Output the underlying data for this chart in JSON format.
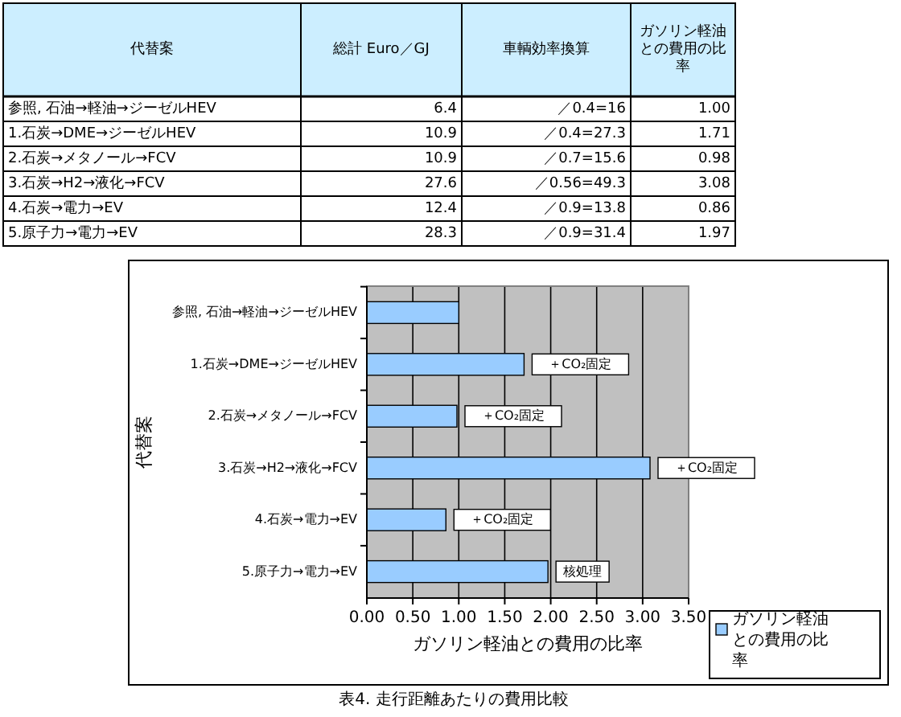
{
  "chart_data": [
    {
      "type": "other",
      "ylabel": "代替案",
      "categories": [
        "参照, 石油→軽油→ジーゼルHEV",
        "1.石炭→DME→ジーゼルHEV",
        "2.石炭→メタノール→FCV",
        "3.石炭→H2→液化→FCV",
        "4.石炭→電力→EV",
        "5.原子力→電力→EV"
      ],
      "series": [
        {
          "name": "総計 Euro／GJ",
          "values": [
            6.4,
            10.9,
            10.9,
            27.6,
            12.4,
            28.3
          ],
          "value_labels": [
            "6.4",
            "10.9",
            "10.9",
            "27.6",
            "12.4",
            "28.3"
          ]
        },
        {
          "name": "車輌効率換算",
          "values": [
            16,
            27.3,
            15.6,
            49.3,
            13.8,
            31.4
          ],
          "value_labels": [
            "／0.4=16",
            "／0.4=27.3",
            "／0.7=15.6",
            "／0.56=49.3",
            "／0.9=13.8",
            "／0.9=31.4"
          ]
        },
        {
          "name": "ガソリン軽油との費用の比率",
          "values": [
            1.0,
            1.71,
            0.98,
            3.08,
            0.86,
            1.97
          ],
          "value_labels": [
            "1.00",
            "1.71",
            "0.98",
            "3.08",
            "0.86",
            "1.97"
          ]
        }
      ]
    },
    {
      "type": "bar",
      "orientation": "horizontal",
      "xlabel": "ガソリン軽油との費用の比率",
      "ylabel": "代替案",
      "categories": [
        "参照, 石油→軽油→ジーゼルHEV",
        "1.石炭→DME→ジーゼルHEV",
        "2.石炭→メタノール→FCV",
        "3.石炭→H2→液化→FCV",
        "4.石炭→電力→EV",
        "5.原子力→電力→EV"
      ],
      "series": [
        {
          "name": "ガソリン軽油との費用の比率",
          "color": "#99ccff",
          "values": [
            1.0,
            1.71,
            0.98,
            3.08,
            0.86,
            1.97
          ]
        }
      ],
      "xlim": [
        0,
        3.5
      ],
      "xticks": [
        {
          "value": 0,
          "label": "0.00"
        },
        {
          "value": 0.5,
          "label": "0.50"
        },
        {
          "value": 1,
          "label": "1.00"
        },
        {
          "value": 1.5,
          "label": "1.50"
        },
        {
          "value": 2,
          "label": "2.00"
        },
        {
          "value": 2.5,
          "label": "2.50"
        },
        {
          "value": 3,
          "label": "3.00"
        },
        {
          "value": 3.5,
          "label": "3.50"
        }
      ],
      "grid": "x",
      "legend": "bottom right",
      "annotations": [
        {
          "text": "＋CO₂固定",
          "x": 1.71,
          "y": "1.石炭→DME→ジーゼルHEV"
        },
        {
          "text": "＋CO₂固定",
          "x": 0.98,
          "y": "2.石炭→メタノール→FCV"
        },
        {
          "text": "＋CO₂固定",
          "x": 3.08,
          "y": "3.石炭→H2→液化→FCV"
        },
        {
          "text": "＋CO₂固定",
          "x": 0.86,
          "y": "4.石炭→電力→EV"
        },
        {
          "text": "核処理",
          "x": 1.97,
          "y": "5.原子力→電力→EV"
        },
        "表4. 走行距離あたりの費用比較"
      ]
    }
  ]
}
